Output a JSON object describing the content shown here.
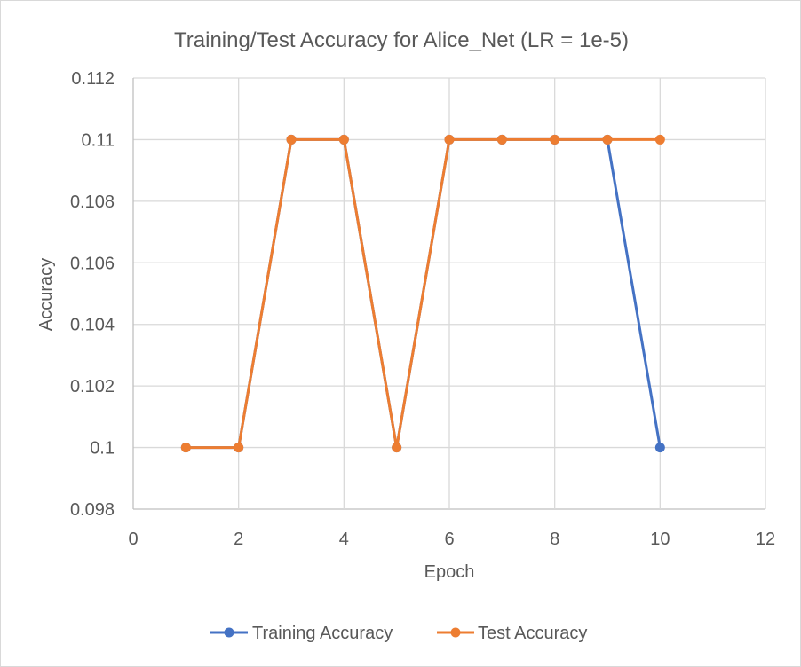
{
  "chart_data": {
    "type": "scatter",
    "title": "Training/Test Accuracy for Alice_Net (LR = 1e-5)",
    "xlabel": "Epoch",
    "ylabel": "Accuracy",
    "xlim": [
      0,
      12
    ],
    "ylim": [
      0.098,
      0.112
    ],
    "xticks": [
      0,
      2,
      4,
      6,
      8,
      10,
      12
    ],
    "yticks": [
      0.098,
      0.1,
      0.102,
      0.104,
      0.106,
      0.108,
      0.11,
      0.112
    ],
    "xtick_labels": [
      "0",
      "2",
      "4",
      "6",
      "8",
      "10",
      "12"
    ],
    "ytick_labels": [
      "0.098",
      "0.1",
      "0.102",
      "0.104",
      "0.106",
      "0.108",
      "0.11",
      "0.112"
    ],
    "grid": true,
    "legend_position": "bottom",
    "series": [
      {
        "name": "Training Accuracy",
        "color": "#4472c4",
        "x": [
          1,
          2,
          3,
          4,
          5,
          6,
          7,
          8,
          9,
          10
        ],
        "y": [
          0.1,
          0.1,
          0.11,
          0.11,
          0.1,
          0.11,
          0.11,
          0.11,
          0.11,
          0.1
        ]
      },
      {
        "name": "Test Accuracy",
        "color": "#ed7d31",
        "x": [
          1,
          2,
          3,
          4,
          5,
          6,
          7,
          8,
          9,
          10
        ],
        "y": [
          0.1,
          0.1,
          0.11,
          0.11,
          0.1,
          0.11,
          0.11,
          0.11,
          0.11,
          0.11
        ]
      }
    ]
  }
}
